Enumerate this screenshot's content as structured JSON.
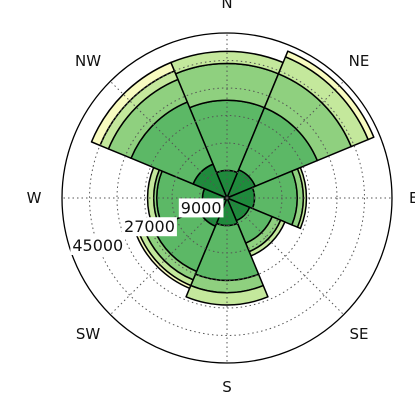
{
  "chart_data": {
    "type": "windrose",
    "directions": [
      "N",
      "NE",
      "E",
      "SE",
      "S",
      "SW",
      "W",
      "NW"
    ],
    "radial_tick_labels": [
      "9000",
      "27000",
      "45000"
    ],
    "radial_ticks": [
      9000,
      27000,
      45000
    ],
    "rmax": 54000,
    "grid": true,
    "bin_colors": [
      "#1f8a3c",
      "#5cb866",
      "#8fd07f",
      "#c4e89c",
      "#f8fbc0"
    ],
    "series": [
      {
        "values": [
          9000,
          10000,
          9000,
          8000,
          9000,
          10000,
          8000,
          12000
        ]
      },
      {
        "values": [
          23000,
          22000,
          14000,
          8000,
          18000,
          16000,
          15000,
          22000
        ]
      },
      {
        "values": [
          12000,
          12000,
          2000,
          3000,
          4000,
          3000,
          1000,
          8000
        ]
      },
      {
        "values": [
          4000,
          6000,
          1000,
          1500,
          4000,
          2000,
          2000,
          3000
        ]
      },
      {
        "values": [
          0,
          2000,
          0,
          0,
          0,
          1000,
          0,
          3000
        ]
      }
    ]
  }
}
